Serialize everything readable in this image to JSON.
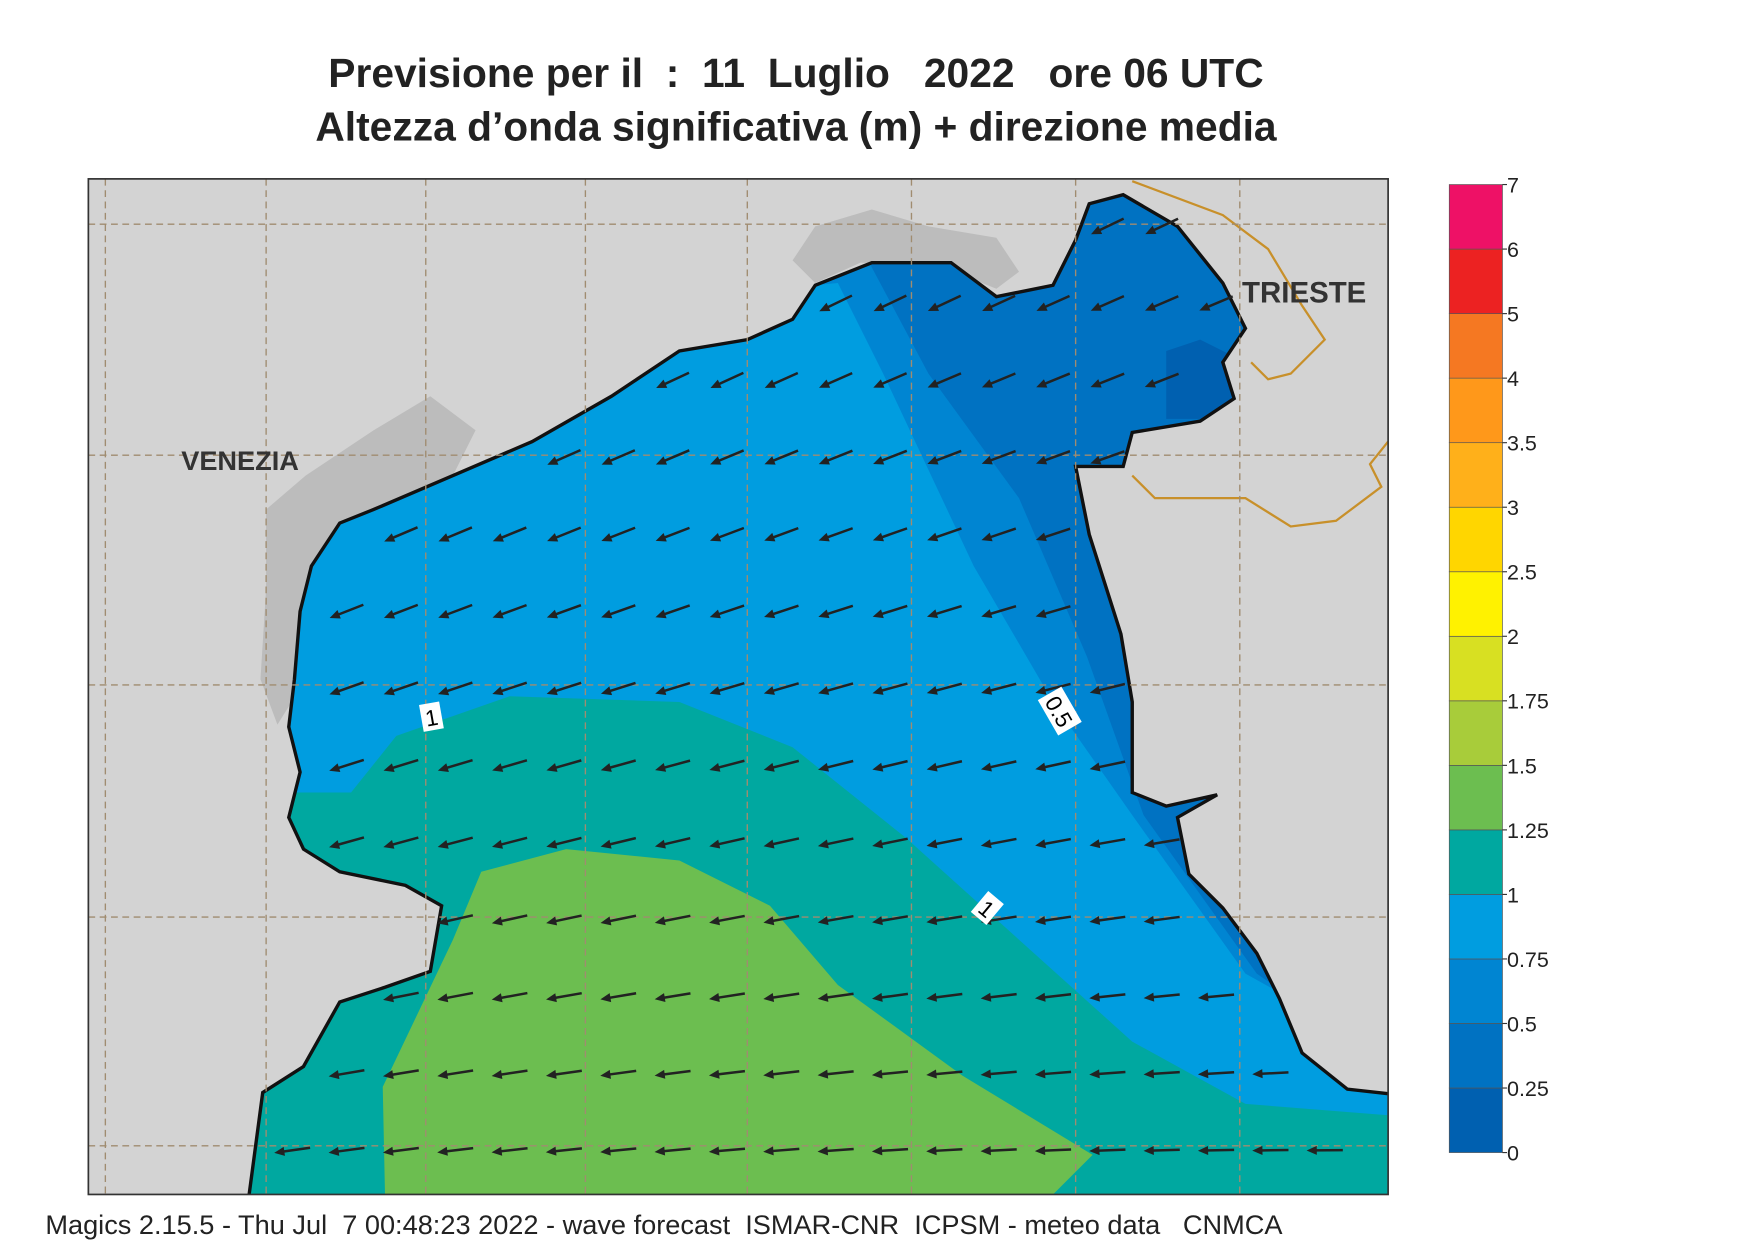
{
  "title": [
    "Previsione per il  :  11  Luglio   2022   ore 06 UTC",
    "Altezza d’onda significativa (m) + direzione media"
  ],
  "places": [
    {
      "label": "VENEZIA"
    },
    {
      "label": "TRIESTE"
    }
  ],
  "contour_labels": [
    1,
    0.5,
    1
  ],
  "legend": {
    "ticks": [
      0,
      0.25,
      0.5,
      0.75,
      1,
      1.25,
      1.5,
      1.75,
      2,
      2.5,
      3,
      3.5,
      4,
      5,
      6,
      7
    ],
    "colors": [
      "#0060b0",
      "#0072c2",
      "#0085d2",
      "#009de0",
      "#00a8a0",
      "#6cbe50",
      "#a8cc3a",
      "#d8e022",
      "#fff200",
      "#ffd600",
      "#ffb01a",
      "#ff981a",
      "#f57822",
      "#ec2222",
      "#ee1166"
    ]
  },
  "footer": "Magics 2.15.5 - Thu Jul  7 00:48:23 2022 - wave forecast  ISMAR-CNR  ICPSM - meteo data   CNMCA"
}
